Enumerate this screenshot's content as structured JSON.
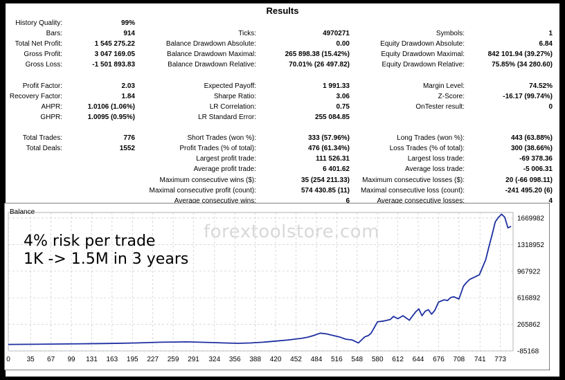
{
  "report": {
    "title": "Results",
    "rows": [
      [
        [
          "History Quality:",
          "99%"
        ],
        null,
        null
      ],
      [
        [
          "Bars:",
          "914"
        ],
        [
          "Ticks:",
          "4970271"
        ],
        [
          "Symbols:",
          "1"
        ]
      ],
      [
        [
          "Total Net Profit:",
          "1 545 275.22"
        ],
        [
          "Balance Drawdown Absolute:",
          "0.00"
        ],
        [
          "Equity Drawdown Absolute:",
          "6.84"
        ]
      ],
      [
        [
          "Gross Profit:",
          "3 047 169.05"
        ],
        [
          "Balance Drawdown Maximal:",
          "265 898.38 (15.42%)"
        ],
        [
          "Equity Drawdown Maximal:",
          "842 101.94 (39.27%)"
        ]
      ],
      [
        [
          "Gross Loss:",
          "-1 501 893.83"
        ],
        [
          "Balance Drawdown Relative:",
          "70.01% (26 497.82)"
        ],
        [
          "Equity Drawdown Relative:",
          "75.85% (34 280.60)"
        ]
      ],
      null,
      [
        [
          "Profit Factor:",
          "2.03"
        ],
        [
          "Expected Payoff:",
          "1 991.33"
        ],
        [
          "Margin Level:",
          "74.52%"
        ]
      ],
      [
        [
          "Recovery Factor:",
          "1.84"
        ],
        [
          "Sharpe Ratio:",
          "3.06"
        ],
        [
          "Z-Score:",
          "-16.17 (99.74%)"
        ]
      ],
      [
        [
          "AHPR:",
          "1.0106 (1.06%)"
        ],
        [
          "LR Correlation:",
          "0.75"
        ],
        [
          "OnTester result:",
          "0"
        ]
      ],
      [
        [
          "GHPR:",
          "1.0095 (0.95%)"
        ],
        [
          "LR Standard Error:",
          "255 084.85"
        ],
        null
      ],
      null,
      [
        [
          "Total Trades:",
          "776"
        ],
        [
          "Short Trades (won %):",
          "333 (57.96%)"
        ],
        [
          "Long Trades (won %):",
          "443 (63.88%)"
        ]
      ],
      [
        [
          "Total Deals:",
          "1552"
        ],
        [
          "Profit Trades (% of total):",
          "476 (61.34%)"
        ],
        [
          "Loss Trades (% of total):",
          "300 (38.66%)"
        ]
      ],
      [
        null,
        [
          "Largest profit trade:",
          "111 526.31"
        ],
        [
          "Largest loss trade:",
          "-69 378.36"
        ]
      ],
      [
        null,
        [
          "Average profit trade:",
          "6 401.62"
        ],
        [
          "Average loss trade:",
          "-5 006.31"
        ]
      ],
      [
        null,
        [
          "Maximum consecutive wins ($):",
          "35 (254 211.33)"
        ],
        [
          "Maximum consecutive losses ($):",
          "20 (-66 098.11)"
        ]
      ],
      [
        null,
        [
          "Maximal consecutive profit (count):",
          "574 430.85 (11)"
        ],
        [
          "Maximal consecutive loss (count):",
          "-241 495.20 (6)"
        ]
      ],
      [
        null,
        [
          "Average consecutive wins:",
          "6"
        ],
        [
          "Average consecutive losses:",
          "4"
        ]
      ]
    ]
  },
  "chart_data": {
    "type": "line",
    "title": "Balance",
    "annotation": [
      "4% risk per trade",
      "1K -> 1.5M in 3 years"
    ],
    "watermark": "forextoolstore.com",
    "x_ticks": [
      0,
      35,
      67,
      99,
      131,
      163,
      195,
      227,
      259,
      291,
      324,
      356,
      388,
      420,
      452,
      484,
      516,
      548,
      580,
      612,
      644,
      676,
      708,
      741,
      773
    ],
    "y_ticks": [
      -85168,
      265862,
      616892,
      967922,
      1318952,
      1669982
    ],
    "xlim": [
      0,
      793
    ],
    "ylim": [
      -85168,
      1669982
    ],
    "series": [
      {
        "color": "#1c2ea0",
        "x": [
          0,
          40,
          80,
          120,
          160,
          200,
          240,
          280,
          300,
          320,
          340,
          360,
          380,
          400,
          420,
          440,
          460,
          470,
          480,
          490,
          500,
          510,
          520,
          530,
          540,
          545,
          550,
          555,
          560,
          566,
          570,
          580,
          590,
          600,
          605,
          612,
          620,
          630,
          640,
          645,
          650,
          655,
          660,
          665,
          670,
          676,
          685,
          690,
          695,
          700,
          708,
          715,
          720,
          725,
          730,
          735,
          740,
          745,
          750,
          755,
          760,
          765,
          770,
          775,
          780,
          785,
          790
        ],
        "y": [
          1000,
          3000,
          6000,
          10000,
          14000,
          20000,
          30000,
          35000,
          30000,
          25000,
          20000,
          15000,
          20000,
          30000,
          45000,
          60000,
          80000,
          95000,
          120000,
          150000,
          140000,
          120000,
          100000,
          70000,
          60000,
          40000,
          20000,
          60000,
          100000,
          120000,
          150000,
          300000,
          310000,
          330000,
          370000,
          340000,
          380000,
          320000,
          430000,
          470000,
          380000,
          440000,
          460000,
          400000,
          450000,
          560000,
          590000,
          580000,
          620000,
          630000,
          600000,
          770000,
          820000,
          860000,
          880000,
          900000,
          920000,
          1020000,
          1120000,
          1290000,
          1450000,
          1620000,
          1680000,
          1720000,
          1680000,
          1540000,
          1560000
        ]
      }
    ]
  }
}
